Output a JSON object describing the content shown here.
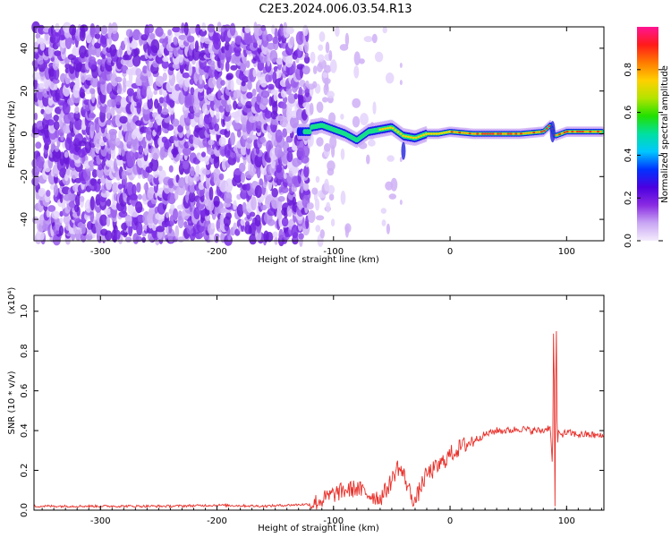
{
  "title": "C2E3.2024.006.03.54.R13",
  "chart_data": [
    {
      "type": "heatmap",
      "xlabel": "Height of straight line (km)",
      "ylabel": "Frequency (Hz)",
      "xlim": [
        -357,
        132
      ],
      "ylim": [
        -50,
        50
      ],
      "xticks": [
        -300,
        -200,
        -100,
        0,
        100
      ],
      "yticks": [
        -40,
        -20,
        0,
        20,
        40
      ],
      "colorbar": {
        "label": "Normalized spectral amplitude",
        "range": [
          0.0,
          1.0
        ],
        "ticks": [
          0.0,
          0.2,
          0.4,
          0.6,
          0.8
        ],
        "colormap": [
          "#f4ecfc",
          "#c9a6f4",
          "#8a2be2",
          "#4b00e0",
          "#0032ff",
          "#00c8ff",
          "#00e0a0",
          "#22e000",
          "#b4e400",
          "#ffd000",
          "#ff7a00",
          "#ff1a1a",
          "#ff1493"
        ]
      },
      "ridge": {
        "x": [
          -120,
          -110,
          -100,
          -90,
          -80,
          -70,
          -60,
          -50,
          -40,
          -30,
          -20,
          -10,
          0,
          20,
          40,
          60,
          80,
          86,
          90,
          100,
          132
        ],
        "y": [
          3,
          4,
          2,
          0,
          -3,
          1,
          2,
          3,
          -1,
          -2,
          0,
          0,
          1,
          0,
          0,
          0,
          1,
          4,
          -1,
          1,
          1
        ]
      }
    },
    {
      "type": "line",
      "xlabel": "Height of straight line (km)",
      "ylabel": "SNR (10 * v/v)",
      "y_scale_label": "(x10⁴)",
      "xlim": [
        -357,
        132
      ],
      "ylim": [
        0,
        1.08
      ],
      "xticks": [
        -300,
        -200,
        -100,
        0,
        100
      ],
      "yticks": [
        0.0,
        0.2,
        0.4,
        0.6,
        0.8,
        1.0
      ],
      "series": [
        {
          "color": "#e8302a",
          "x": [
            -357,
            -320,
            -280,
            -240,
            -200,
            -160,
            -120,
            -110,
            -100,
            -90,
            -80,
            -70,
            -60,
            -55,
            -50,
            -45,
            -40,
            -35,
            -30,
            -25,
            -20,
            -15,
            -10,
            0,
            10,
            20,
            30,
            40,
            50,
            60,
            70,
            80,
            86,
            88,
            89,
            90,
            91,
            92,
            93,
            95,
            100,
            110,
            120,
            132
          ],
          "y": [
            0.02,
            0.02,
            0.02,
            0.02,
            0.025,
            0.02,
            0.03,
            0.05,
            0.08,
            0.1,
            0.11,
            0.08,
            0.06,
            0.1,
            0.15,
            0.22,
            0.18,
            0.1,
            0.04,
            0.12,
            0.18,
            0.2,
            0.22,
            0.28,
            0.32,
            0.35,
            0.38,
            0.4,
            0.4,
            0.41,
            0.4,
            0.4,
            0.42,
            0.2,
            1.06,
            0.02,
            1.05,
            0.3,
            0.4,
            0.38,
            0.39,
            0.38,
            0.38,
            0.37
          ]
        }
      ]
    }
  ]
}
